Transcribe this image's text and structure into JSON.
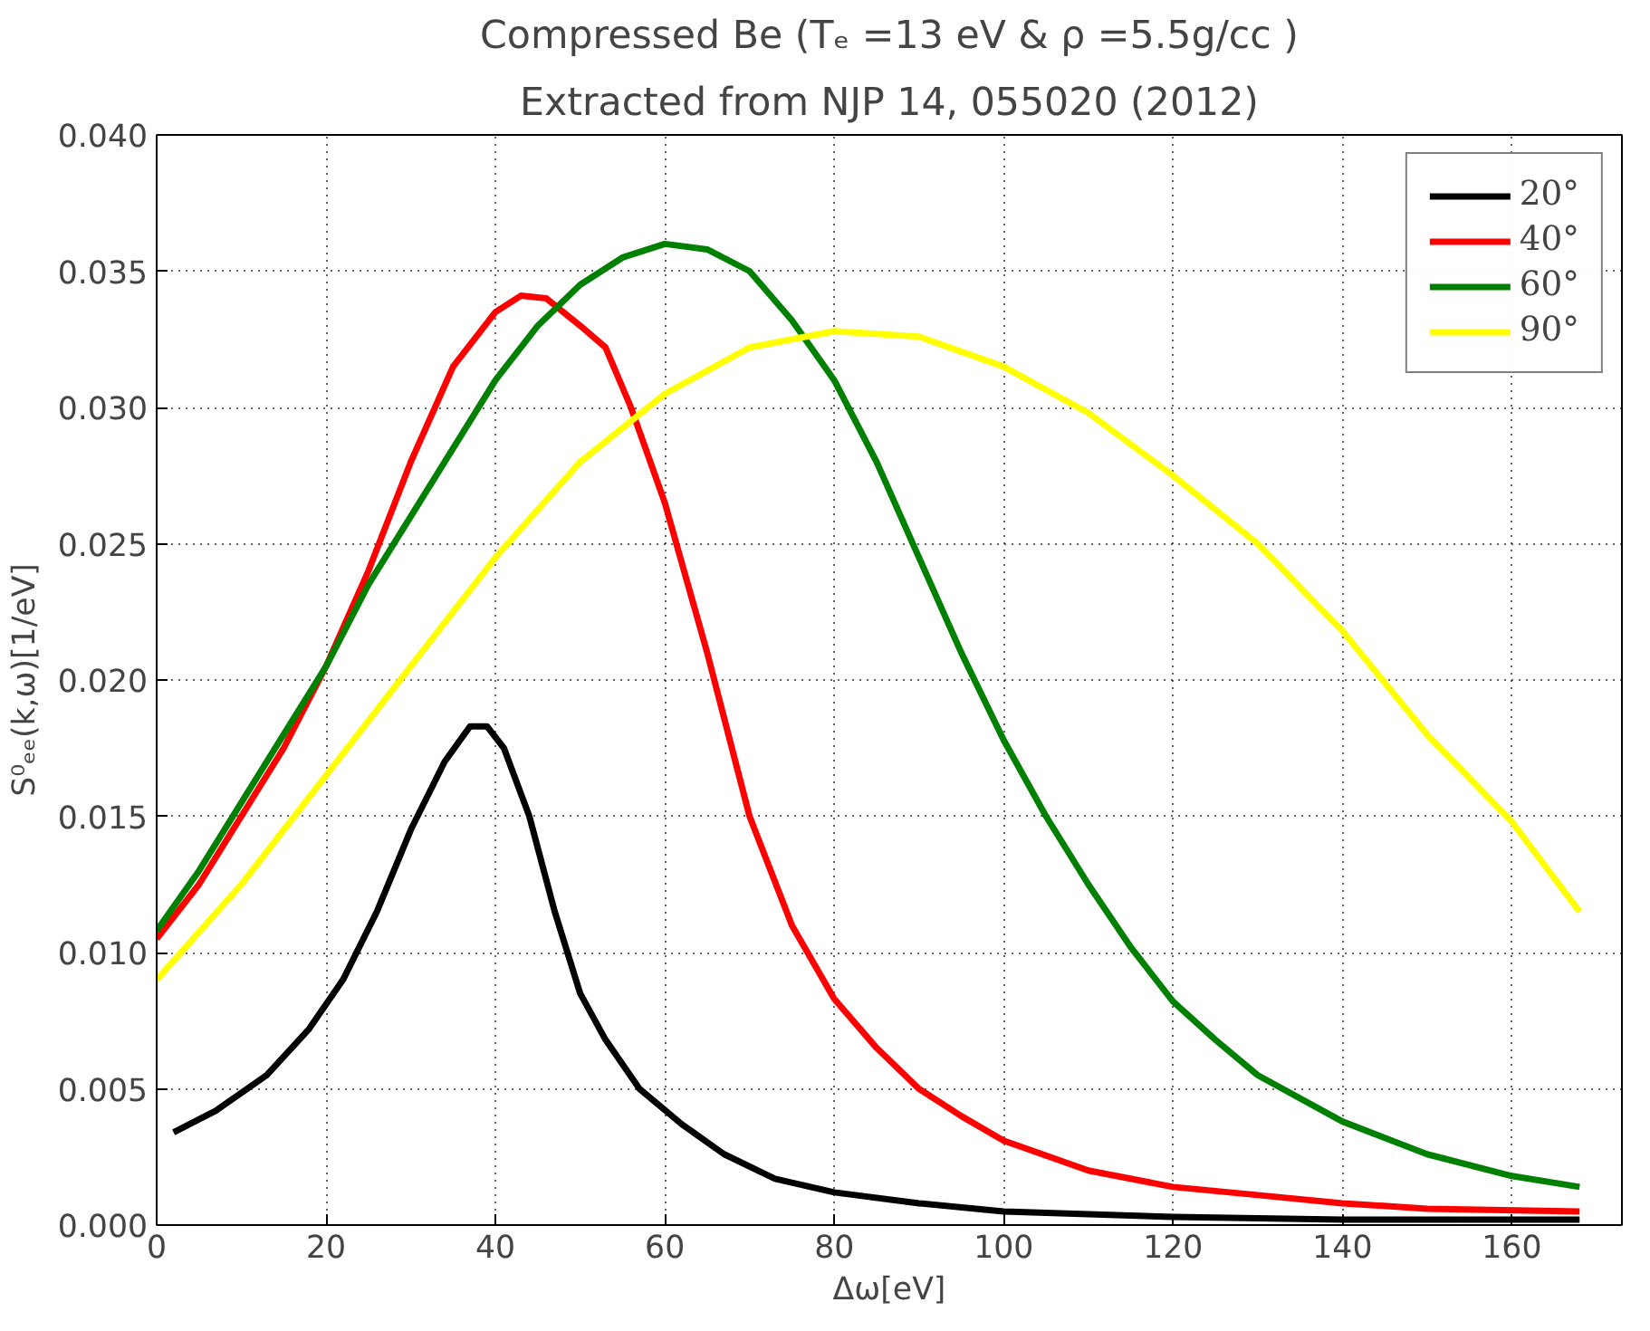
{
  "chart_data": {
    "type": "line",
    "title": "Compressed Be (Tₑ =13 eV & ρ =5.5g/cc )",
    "subtitle": "Extracted from NJP 14, 055020 (2012)",
    "xlabel": "Δω[eV]",
    "ylabel": "S⁰ₑₑ(k,ω)[1/eV]",
    "xlim": [
      0,
      173
    ],
    "ylim": [
      0,
      0.04
    ],
    "xticks": [
      0,
      20,
      40,
      60,
      80,
      100,
      120,
      140,
      160
    ],
    "yticks": [
      {
        "value": 0,
        "label": "0.000"
      },
      {
        "value": 0.005,
        "label": "0.005"
      },
      {
        "value": 0.01,
        "label": "0.010"
      },
      {
        "value": 0.015,
        "label": "0.015"
      },
      {
        "value": 0.02,
        "label": "0.020"
      },
      {
        "value": 0.025,
        "label": "0.025"
      },
      {
        "value": 0.03,
        "label": "0.030"
      },
      {
        "value": 0.035,
        "label": "0.035"
      },
      {
        "value": 0.04,
        "label": "0.040"
      }
    ],
    "grid": true,
    "legend": "top right",
    "line_style": "solid",
    "series": [
      {
        "name": "20°",
        "color": "#000000",
        "x": [
          2,
          7,
          13,
          18,
          22,
          26,
          30,
          34,
          37,
          39,
          41,
          44,
          47,
          50,
          53,
          57,
          62,
          67,
          73,
          80,
          90,
          100,
          120,
          140,
          168
        ],
        "values": [
          0.0034,
          0.0042,
          0.0055,
          0.0072,
          0.009,
          0.0115,
          0.0145,
          0.017,
          0.0183,
          0.0183,
          0.0175,
          0.015,
          0.0115,
          0.0085,
          0.0068,
          0.005,
          0.0037,
          0.0026,
          0.0017,
          0.0012,
          0.0008,
          0.0005,
          0.0003,
          0.0002,
          0.0002
        ]
      },
      {
        "name": "40°",
        "color": "#ff0000",
        "x": [
          0,
          5,
          10,
          15,
          20,
          25,
          30,
          35,
          40,
          43,
          46,
          50,
          53,
          56,
          60,
          65,
          70,
          75,
          80,
          85,
          90,
          95,
          100,
          110,
          120,
          130,
          140,
          150,
          168
        ],
        "values": [
          0.0105,
          0.0125,
          0.015,
          0.0175,
          0.0205,
          0.024,
          0.028,
          0.0315,
          0.0335,
          0.0341,
          0.034,
          0.033,
          0.0322,
          0.03,
          0.0265,
          0.021,
          0.015,
          0.011,
          0.0083,
          0.0065,
          0.005,
          0.004,
          0.0031,
          0.002,
          0.0014,
          0.0011,
          0.0008,
          0.0006,
          0.0005
        ]
      },
      {
        "name": "60°",
        "color": "#008000",
        "x": [
          0,
          5,
          10,
          15,
          20,
          25,
          30,
          35,
          40,
          45,
          50,
          55,
          60,
          65,
          70,
          75,
          80,
          85,
          90,
          95,
          100,
          105,
          110,
          115,
          120,
          125,
          130,
          140,
          150,
          160,
          168
        ],
        "values": [
          0.0108,
          0.013,
          0.0155,
          0.018,
          0.0205,
          0.0235,
          0.026,
          0.0285,
          0.031,
          0.033,
          0.0345,
          0.0355,
          0.036,
          0.0358,
          0.035,
          0.0332,
          0.031,
          0.028,
          0.0245,
          0.021,
          0.0178,
          0.015,
          0.0125,
          0.0102,
          0.0082,
          0.0068,
          0.0055,
          0.0038,
          0.0026,
          0.0018,
          0.0014
        ]
      },
      {
        "name": "90°",
        "color": "#ffff00",
        "x": [
          0,
          10,
          20,
          30,
          40,
          50,
          60,
          70,
          80,
          90,
          100,
          110,
          120,
          130,
          140,
          150,
          160,
          168
        ],
        "values": [
          0.009,
          0.0125,
          0.0165,
          0.0205,
          0.0245,
          0.028,
          0.0305,
          0.0322,
          0.0328,
          0.0326,
          0.0315,
          0.0298,
          0.0275,
          0.025,
          0.0218,
          0.018,
          0.0148,
          0.0115
        ]
      }
    ]
  }
}
